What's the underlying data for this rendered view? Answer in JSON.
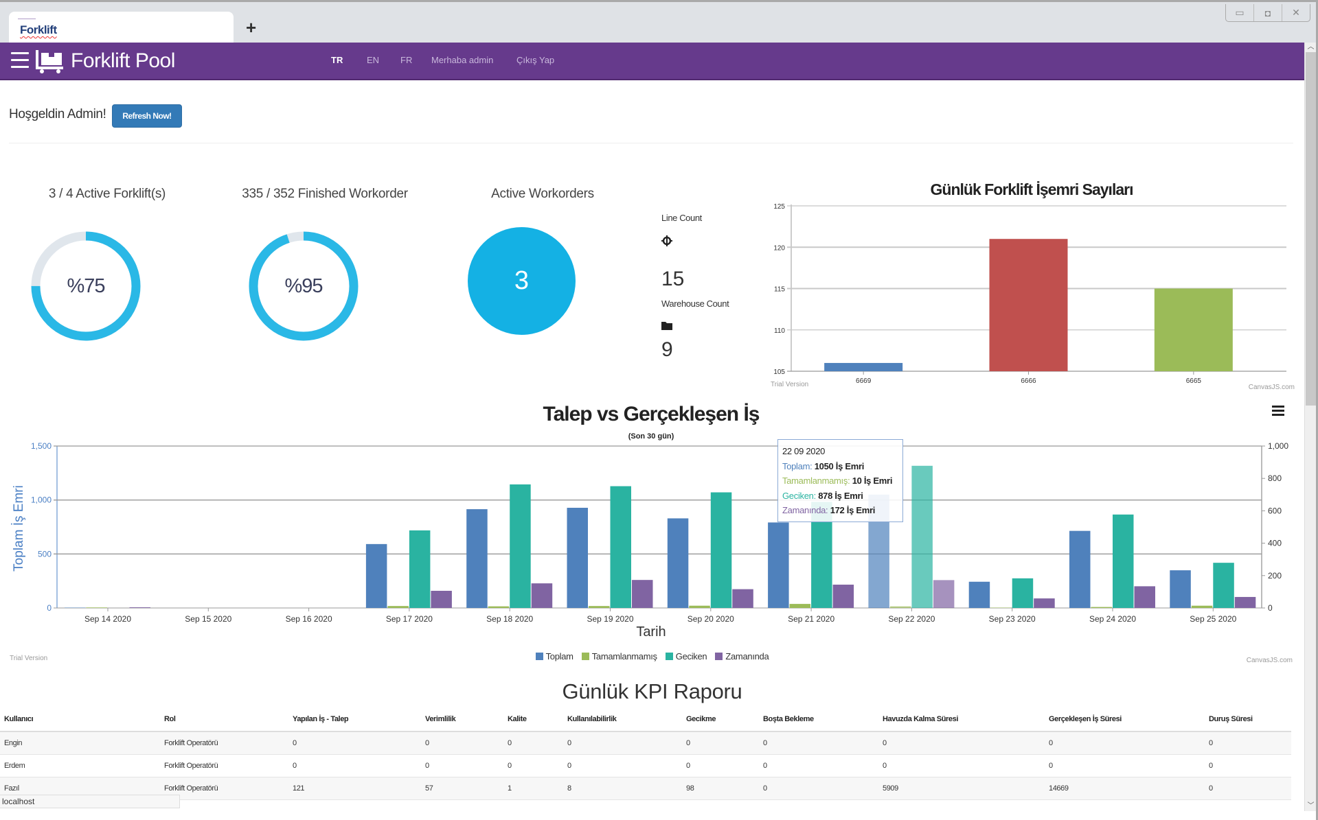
{
  "browser": {
    "tab_title": "Forklift",
    "new_tab_icon": "plus-icon",
    "window_controls": [
      "minimize-icon",
      "restore-icon",
      "close-icon"
    ]
  },
  "nav": {
    "brand": "Forklift Pool",
    "menu_icon": "hamburger-icon",
    "logo_icon": "forklift-pallet-icon",
    "links": [
      {
        "label": "TR",
        "active": true
      },
      {
        "label": "EN",
        "active": false
      },
      {
        "label": "FR",
        "active": false
      },
      {
        "label": "Merhaba admin",
        "active": false
      },
      {
        "label": "Çıkış Yap",
        "active": false
      }
    ],
    "color": "#663a8c"
  },
  "welcome": {
    "text": "Hoşgeldin Admin!",
    "refresh_label": "Refresh Now!"
  },
  "stats": {
    "forklifts": {
      "title": "3 / 4 Active Forklift(s)",
      "percent_label": "%75",
      "fraction": 0.75
    },
    "workorders": {
      "title": "335 / 352 Finished Workorder",
      "percent_label": "%95",
      "fraction": 0.95
    },
    "active_workorders": {
      "title": "Active Workorders",
      "value": "3"
    },
    "line_count": {
      "label": "Line Count",
      "icon": "crosshair-icon",
      "value": "15"
    },
    "warehouse_count": {
      "label": "Warehouse Count",
      "icon": "folder-icon",
      "value": "9"
    },
    "gauge_color": "#2ab8e6",
    "gauge_track_color": "#e0e6ec",
    "circle_color": "#14b1e4"
  },
  "chart_data": [
    {
      "type": "bar",
      "title": "Günlük Forklift İşemri Sayıları",
      "categories": [
        "6669",
        "6666",
        "6665"
      ],
      "values": [
        106,
        121,
        115
      ],
      "colors": [
        "#4f81bc",
        "#c0504e",
        "#9bbb58"
      ],
      "xlabel": "",
      "ylabel": "",
      "ylim": [
        105,
        125
      ],
      "yticks": [
        105,
        110,
        115,
        120,
        125
      ],
      "grid": true,
      "watermark_left": "Trial Version",
      "watermark_right": "CanvasJS.com"
    },
    {
      "type": "bar",
      "title": "Talep vs Gerçekleşen İş",
      "subtitle": "(Son 30 gün)",
      "xlabel": "Tarih",
      "ylabel": "Toplam İş Emri",
      "categories": [
        "Sep 14 2020",
        "Sep 15 2020",
        "Sep 16 2020",
        "Sep 17 2020",
        "Sep 18 2020",
        "Sep 19 2020",
        "Sep 20 2020",
        "Sep 21 2020",
        "Sep 22 2020",
        "Sep 23 2020",
        "Sep 24 2020",
        "Sep 25 2020"
      ],
      "ylim": [
        0,
        1500
      ],
      "yticks": [
        "0",
        "500",
        "1,000",
        "1,500"
      ],
      "y2lim": [
        0,
        1000
      ],
      "y2ticks": [
        "0",
        "200",
        "400",
        "600",
        "800",
        "1,000"
      ],
      "series": [
        {
          "name": "Toplam",
          "axis": "left",
          "color": "#4f81bc",
          "values": [
            3,
            0,
            0,
            592,
            915,
            928,
            830,
            792,
            1050,
            243,
            714,
            349
          ]
        },
        {
          "name": "Tamamlanmamış",
          "axis": "right",
          "color": "#9bbb58",
          "values": [
            3,
            0,
            0,
            12,
            10,
            12,
            14,
            25,
            10,
            2,
            6,
            14
          ]
        },
        {
          "name": "Geciken",
          "axis": "right",
          "color": "#2ab3a1",
          "values": [
            0,
            0,
            0,
            479,
            763,
            752,
            714,
            655,
            878,
            183,
            577,
            279
          ]
        },
        {
          "name": "Zamanında",
          "axis": "right",
          "color": "#8064a2",
          "values": [
            4,
            0,
            0,
            106,
            152,
            173,
            116,
            144,
            172,
            59,
            134,
            68
          ]
        }
      ],
      "highlighted_category": "Sep 22 2020",
      "legend": "bottom",
      "grid": true,
      "tooltip": {
        "date": "22 09 2020",
        "rows": [
          {
            "label": "Toplam:",
            "value": "1050 İş Emri",
            "color": "#4f81bc"
          },
          {
            "label": "Tamamlanmamış:",
            "value": "10 İş Emri",
            "color": "#9bbb58"
          },
          {
            "label": "Geciken:",
            "value": "878 İş Emri",
            "color": "#2ab3a1"
          },
          {
            "label": "Zamanında:",
            "value": "172 İş Emri",
            "color": "#8064a2"
          }
        ]
      },
      "menu_icon": "hamburger-menu-icon",
      "watermark_left": "Trial Version",
      "watermark_right": "CanvasJS.com"
    }
  ],
  "kpi": {
    "title": "Günlük KPI Raporu",
    "columns": [
      "Kullanıcı",
      "Rol",
      "Yapılan İş - Talep",
      "Verimlilik",
      "Kalite",
      "Kullanılabilirlik",
      "Gecikme",
      "Boşta Bekleme",
      "Havuzda Kalma Süresi",
      "Gerçekleşen İş Süresi",
      "Duruş Süresi"
    ],
    "rows": [
      [
        "Engin",
        "Forklift Operatörü",
        "0",
        "0",
        "0",
        "0",
        "0",
        "0",
        "0",
        "0",
        "0"
      ],
      [
        "Erdem",
        "Forklift Operatörü",
        "0",
        "0",
        "0",
        "0",
        "0",
        "0",
        "0",
        "0",
        "0"
      ],
      [
        "Fazıl",
        "Forklift Operatörü",
        "121",
        "57",
        "1",
        "8",
        "98",
        "0",
        "5909",
        "14669",
        "0"
      ]
    ]
  },
  "statusbar": {
    "text": "localhost"
  }
}
